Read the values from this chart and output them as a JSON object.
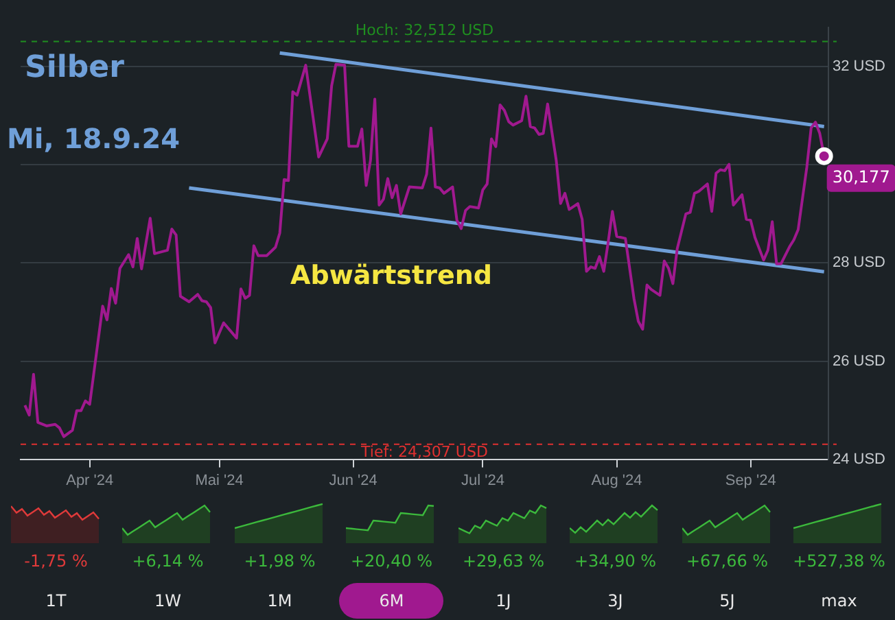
{
  "chart_data": [
    {
      "type": "line",
      "title": "Silber",
      "subtitle": "Mi, 18.9.24",
      "x": [
        "2024-03-17",
        "2024-03-18",
        "2024-03-19",
        "2024-03-20",
        "2024-03-22",
        "2024-03-24",
        "2024-03-25",
        "2024-03-26",
        "2024-03-28",
        "2024-03-29",
        "2024-03-30",
        "2024-03-31",
        "2024-04-01",
        "2024-04-04",
        "2024-04-05",
        "2024-04-06",
        "2024-04-07",
        "2024-04-08",
        "2024-04-10",
        "2024-04-11",
        "2024-04-12",
        "2024-04-13",
        "2024-04-15",
        "2024-04-16",
        "2024-04-19",
        "2024-04-20",
        "2024-04-21",
        "2024-04-22",
        "2024-04-24",
        "2024-04-26",
        "2024-04-27",
        "2024-04-28",
        "2024-04-29",
        "2024-04-30",
        "2024-05-02",
        "2024-05-05",
        "2024-05-06",
        "2024-05-07",
        "2024-05-08",
        "2024-05-09",
        "2024-05-10",
        "2024-05-12",
        "2024-05-14",
        "2024-05-15",
        "2024-05-16",
        "2024-05-17",
        "2024-05-18",
        "2024-05-19",
        "2024-05-21",
        "2024-05-24",
        "2024-05-26",
        "2024-05-27",
        "2024-05-28",
        "2024-05-30",
        "2024-05-31",
        "2024-06-02",
        "2024-06-03",
        "2024-06-04",
        "2024-06-05",
        "2024-06-06",
        "2024-06-07",
        "2024-06-08",
        "2024-06-09",
        "2024-06-10",
        "2024-06-11",
        "2024-06-12",
        "2024-06-14",
        "2024-06-17",
        "2024-06-18",
        "2024-06-19",
        "2024-06-20",
        "2024-06-21",
        "2024-06-22",
        "2024-06-24",
        "2024-06-25",
        "2024-06-26",
        "2024-06-27",
        "2024-06-28",
        "2024-06-30",
        "2024-07-01",
        "2024-07-02",
        "2024-07-03",
        "2024-07-04",
        "2024-07-05",
        "2024-07-06",
        "2024-07-07",
        "2024-07-08",
        "2024-07-10",
        "2024-07-11",
        "2024-07-12",
        "2024-07-13",
        "2024-07-14",
        "2024-07-15",
        "2024-07-16",
        "2024-07-18",
        "2024-07-19",
        "2024-07-20",
        "2024-07-21",
        "2024-07-23",
        "2024-07-24",
        "2024-07-25",
        "2024-07-26",
        "2024-07-27",
        "2024-07-28",
        "2024-07-29",
        "2024-07-30",
        "2024-07-31",
        "2024-08-01",
        "2024-08-03",
        "2024-08-05",
        "2024-08-06",
        "2024-08-07",
        "2024-08-08",
        "2024-08-09",
        "2024-08-11",
        "2024-08-12",
        "2024-08-13",
        "2024-08-14",
        "2024-08-15",
        "2024-08-17",
        "2024-08-18",
        "2024-08-19",
        "2024-08-20",
        "2024-08-22",
        "2024-08-23",
        "2024-08-24",
        "2024-08-25",
        "2024-08-26",
        "2024-08-27",
        "2024-08-28",
        "2024-08-30",
        "2024-08-31",
        "2024-09-01",
        "2024-09-02",
        "2024-09-04",
        "2024-09-05",
        "2024-09-06",
        "2024-09-07",
        "2024-09-08",
        "2024-09-10",
        "2024-09-11",
        "2024-09-12",
        "2024-09-14",
        "2024-09-15",
        "2024-09-16",
        "2024-09-17",
        "2024-09-18"
      ],
      "series": [
        {
          "color": "#a0198f",
          "values": [
            25.1,
            24.9,
            25.73,
            24.75,
            24.68,
            24.71,
            24.64,
            24.46,
            24.59,
            24.99,
            24.99,
            25.19,
            25.12,
            27.12,
            26.84,
            27.48,
            27.18,
            27.89,
            28.17,
            27.92,
            28.5,
            27.88,
            28.91,
            28.19,
            28.26,
            28.69,
            28.57,
            27.32,
            27.21,
            27.36,
            27.23,
            27.21,
            27.09,
            26.37,
            26.78,
            26.47,
            27.47,
            27.28,
            27.34,
            28.35,
            28.15,
            28.15,
            28.32,
            28.61,
            29.7,
            29.68,
            31.49,
            31.42,
            32.03,
            30.16,
            30.53,
            31.61,
            32.05,
            32.03,
            30.38,
            30.38,
            30.73,
            29.58,
            30.09,
            31.34,
            29.18,
            29.3,
            29.72,
            29.33,
            29.58,
            29.0,
            29.55,
            29.53,
            29.81,
            30.75,
            29.55,
            29.53,
            29.42,
            29.55,
            28.87,
            28.7,
            29.07,
            29.15,
            29.12,
            29.49,
            29.61,
            30.53,
            30.37,
            31.22,
            31.11,
            30.88,
            30.81,
            30.9,
            31.4,
            30.78,
            30.75,
            30.62,
            30.64,
            31.24,
            30.09,
            29.21,
            29.42,
            29.09,
            29.21,
            28.89,
            27.83,
            27.92,
            27.89,
            28.13,
            27.83,
            28.41,
            29.05,
            28.54,
            28.5,
            27.27,
            26.81,
            26.65,
            27.55,
            27.46,
            27.34,
            28.04,
            27.89,
            27.58,
            28.29,
            29.0,
            29.03,
            29.42,
            29.46,
            29.61,
            29.05,
            29.83,
            29.9,
            29.88,
            30.01,
            29.18,
            29.39,
            28.89,
            28.87,
            28.52,
            28.06,
            28.26,
            28.84,
            27.98,
            27.98,
            28.33,
            28.47,
            28.68,
            29.95,
            30.75,
            30.87,
            30.64,
            30.177
          ]
        },
        {
          "type": "line",
          "color": "#6f9fd8",
          "x": [
            "2024-05-15",
            "2024-09-18"
          ],
          "values": [
            32.28,
            30.78
          ]
        },
        {
          "type": "line",
          "color": "#6f9fd8",
          "x": [
            "2024-04-24",
            "2024-09-18"
          ],
          "values": [
            29.53,
            27.82
          ]
        }
      ],
      "xlim": [
        "2024-03-16",
        "2024-09-19"
      ],
      "xticks": [
        {
          "value": "2024-04-01",
          "label": "Apr '24"
        },
        {
          "value": "2024-05-01",
          "label": "Mai '24"
        },
        {
          "value": "2024-06-01",
          "label": "Jun '24"
        },
        {
          "value": "2024-07-01",
          "label": "Jul '24"
        },
        {
          "value": "2024-08-01",
          "label": "Aug '24"
        },
        {
          "value": "2024-09-01",
          "label": "Sep '24"
        }
      ],
      "ylim": [
        24,
        32.8
      ],
      "yticks": [
        {
          "value": 24,
          "label": "24 USD"
        },
        {
          "value": 26,
          "label": "26 USD"
        },
        {
          "value": 28,
          "label": "28 USD"
        },
        {
          "value": 30,
          "label": null
        },
        {
          "value": 32,
          "label": "32 USD"
        }
      ],
      "grid": "y",
      "legend": false,
      "marker": "none",
      "line_style": "solid",
      "ref_lines": [
        {
          "axis": "y",
          "value": 32.512,
          "label": "Hoch: 32,512 USD",
          "color": "#1f8f1f",
          "line_style": "dashed"
        },
        {
          "axis": "y",
          "value": 24.307,
          "label": "Tief: 24,307 USD",
          "color": "#e03030",
          "line_style": "dashed"
        }
      ],
      "annotations": [
        "Abwärtstrend",
        {
          "text": "30,177",
          "x": "2024-09-18",
          "y": 30.177
        }
      ]
    },
    {
      "type": "other",
      "categories": [
        "1T",
        "1W",
        "1M",
        "6M",
        "1J",
        "3J",
        "5J",
        "max"
      ],
      "values": [
        -1.75,
        6.14,
        1.98,
        20.4,
        29.63,
        34.9,
        67.66,
        527.38
      ],
      "value_labels": [
        "-1,75 %",
        "+6,14 %",
        "+1,98 %",
        "+20,40 %",
        "+29,63 %",
        "+34,90 %",
        "+67,66 %",
        "+527,38 %"
      ],
      "colors": [
        "#e03a3a",
        "#3cb93c",
        "#3cb93c",
        "#3cb93c",
        "#3cb93c",
        "#3cb93c",
        "#3cb93c",
        "#3cb93c"
      ]
    }
  ]
}
